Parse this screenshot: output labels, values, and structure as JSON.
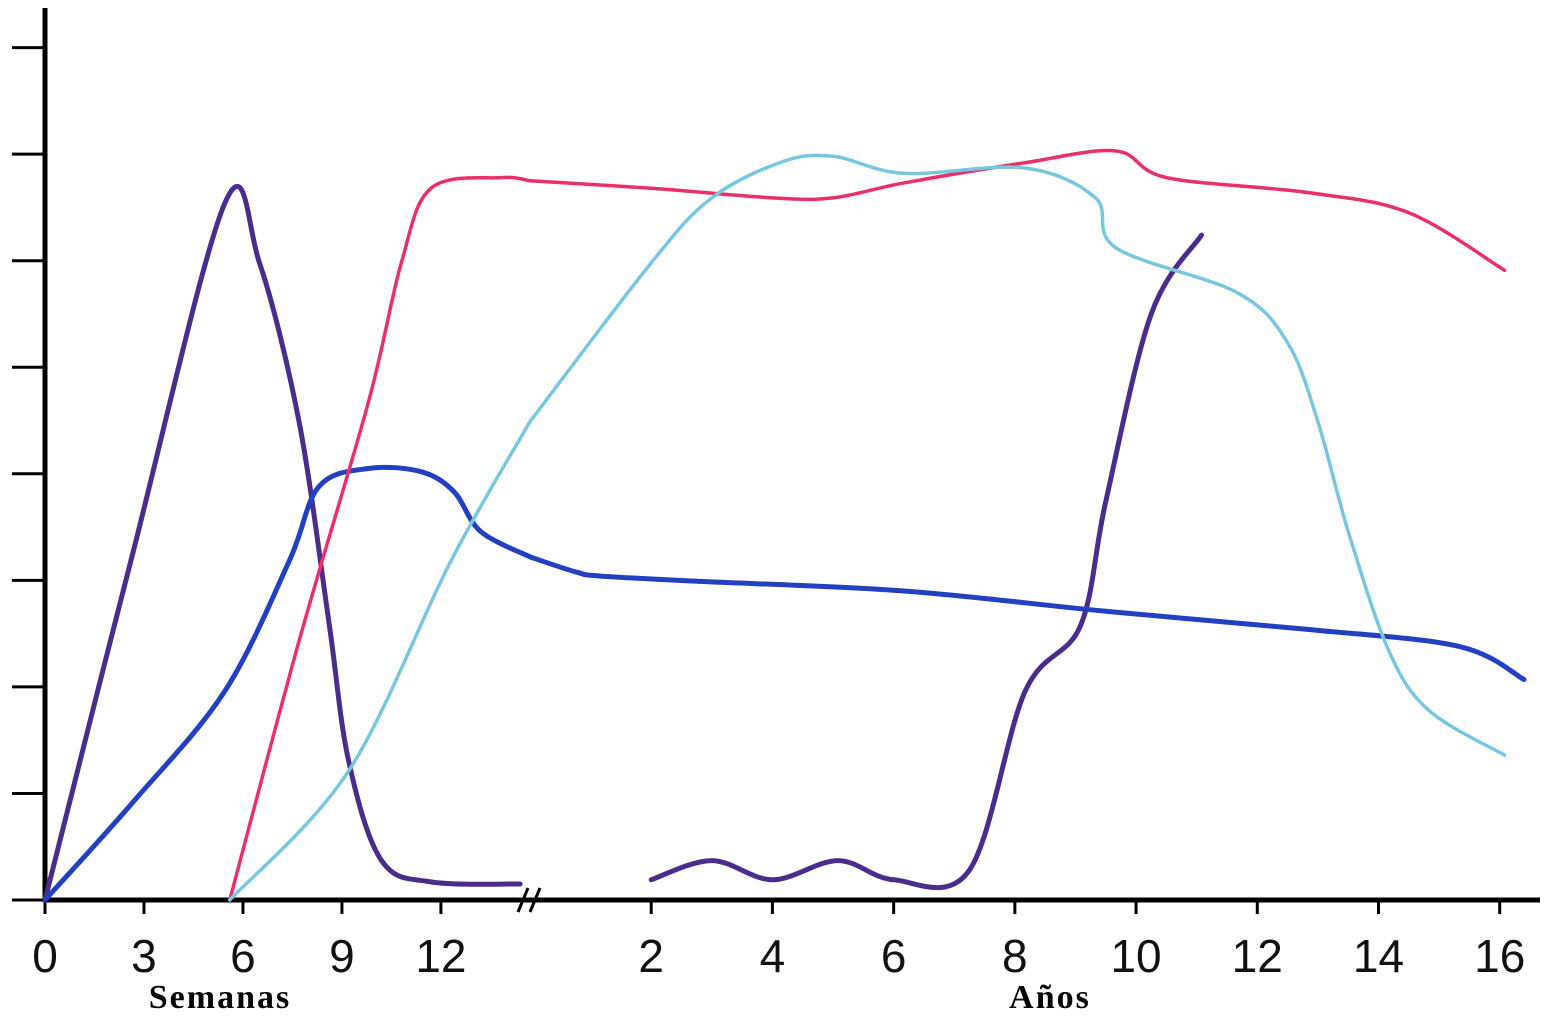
{
  "chart_data": {
    "type": "line",
    "x_label": "Semanas",
    "x2_label": "Años",
    "xlim": [
      0,
      14.7
    ],
    "xticks": [
      0,
      3,
      6,
      9,
      12
    ],
    "x2lim": [
      0,
      16.5
    ],
    "x2ticks": [
      2,
      4,
      6,
      8,
      10,
      12,
      14,
      16
    ],
    "ylim": [
      0,
      8.4
    ],
    "yticks": [
      0,
      1,
      2,
      3,
      4,
      5,
      6,
      7,
      8
    ],
    "series": [
      {
        "color": "#4a2c8c",
        "weeks_x": [
          0,
          2.6,
          5.45,
          6.5,
          7.7,
          8.6,
          9.2,
          10.2,
          11.7,
          14.4
        ],
        "weeks_values": [
          0,
          3.18,
          6.54,
          5.98,
          4.49,
          2.62,
          1.31,
          0.37,
          0.17,
          0.15
        ],
        "years_x": [
          2,
          3,
          4,
          5.08,
          6,
          7.25,
          8.17,
          9.08,
          9.5,
          10.25,
          11.08
        ],
        "years_values": [
          0.19,
          0.37,
          0.19,
          0.37,
          0.19,
          0.28,
          1.96,
          2.57,
          3.74,
          5.5,
          6.24
        ]
      },
      {
        "color": "#2340c0",
        "weeks_x": [
          0,
          2.7,
          5.45,
          7.4,
          8.3,
          9.8,
          11.4,
          12.4,
          13.2,
          14.7
        ],
        "weeks_values": [
          0,
          0.93,
          1.96,
          3.18,
          3.88,
          4.05,
          4.02,
          3.83,
          3.46,
          3.22
        ],
        "years_x": [
          0,
          0.75,
          1.17,
          2.83,
          6.17,
          9.5,
          12.83,
          15.33,
          16.4
        ],
        "years_values": [
          3.22,
          3.08,
          3.04,
          2.99,
          2.9,
          2.71,
          2.54,
          2.38,
          2.07
        ]
      },
      {
        "color": "#e8306a",
        "weeks_x": [
          5.6,
          7.7,
          9.8,
          10.8,
          11.7,
          13.8,
          14.7
        ],
        "weeks_values": [
          0,
          2.43,
          4.67,
          5.98,
          6.68,
          6.78,
          6.75
        ],
        "years_x": [
          0,
          2,
          4,
          5,
          6.17,
          8.17,
          9.67,
          10.5,
          12.83,
          14.5,
          16.08
        ],
        "years_values": [
          6.75,
          6.68,
          6.59,
          6.59,
          6.73,
          6.92,
          7.03,
          6.78,
          6.64,
          6.45,
          5.91
        ]
      },
      {
        "color": "#78c6e0",
        "weeks_x": [
          5.6,
          9.2,
          12.3,
          14.7
        ],
        "weeks_values": [
          0,
          1.21,
          3.18,
          4.49
        ],
        "years_x": [
          0,
          2,
          3,
          4.17,
          5,
          6.17,
          8.17,
          9.33,
          9.67,
          11.67,
          12.5,
          13,
          13.5,
          14.17,
          14.83,
          16.08
        ],
        "years_values": [
          4.49,
          5.98,
          6.59,
          6.93,
          6.98,
          6.82,
          6.87,
          6.59,
          6.12,
          5.7,
          5.23,
          4.49,
          3.46,
          2.34,
          1.78,
          1.36
        ]
      }
    ]
  }
}
